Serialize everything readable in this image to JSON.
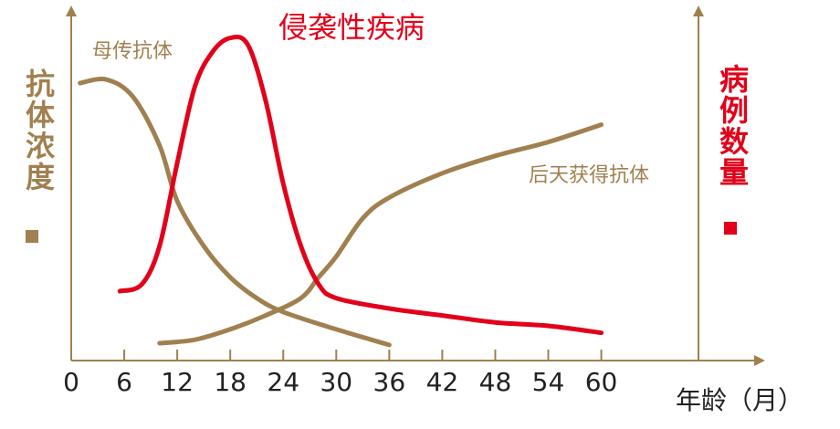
{
  "chart_data": {
    "type": "line",
    "title": "侵袭性疾病",
    "xlabel": "年龄（月）",
    "ylabel": "抗体浓度",
    "y2label": "病例数量",
    "xlim": [
      0,
      71
    ],
    "xticks": [
      0,
      6,
      12,
      18,
      24,
      30,
      36,
      42,
      48,
      54,
      60
    ],
    "ylim": [
      0,
      100
    ],
    "y2lim": [
      0,
      100
    ],
    "series": [
      {
        "name": "母传抗体",
        "color": "#a0804f",
        "x": [
          1,
          4,
          7,
          10,
          12,
          15,
          18,
          21,
          24,
          30,
          36
        ],
        "values": [
          80,
          81,
          76,
          62,
          46,
          33,
          24,
          18,
          14,
          9,
          4.5
        ]
      },
      {
        "name": "后天获得抗体",
        "color": "#a0804f",
        "x": [
          10,
          14,
          18,
          22,
          26,
          28,
          30,
          33,
          36,
          42,
          48,
          54,
          60
        ],
        "values": [
          5,
          6,
          9,
          13,
          18,
          24,
          30,
          41,
          47,
          54,
          59,
          63,
          68
        ]
      },
      {
        "name": "侵袭性疾病",
        "color": "#e2001a",
        "axis": "y2",
        "x": [
          5.5,
          8,
          10,
          12,
          14,
          16,
          18,
          20,
          22,
          24,
          26,
          28,
          30,
          36,
          42,
          48,
          54,
          60
        ],
        "values": [
          20,
          22,
          33,
          57,
          79,
          89,
          93,
          91,
          75,
          51,
          33,
          22,
          18,
          15,
          13,
          11,
          10,
          8
        ]
      }
    ]
  }
}
